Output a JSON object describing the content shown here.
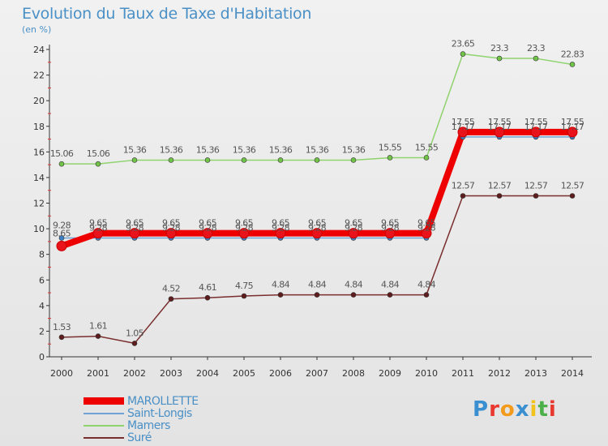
{
  "header": {
    "title": "Evolution du Taux de Taxe d'Habitation",
    "unit": "(en %)"
  },
  "brand": {
    "text": "Proxiti",
    "letter_colors": [
      "#3a8fd0",
      "#e8382f",
      "#f29b1d",
      "#3a8fd0",
      "#f2c21d",
      "#4bb04a",
      "#e8382f"
    ]
  },
  "chart_data": {
    "type": "line",
    "x": [
      "2000",
      "2001",
      "2002",
      "2003",
      "2004",
      "2005",
      "2006",
      "2007",
      "2008",
      "2009",
      "2010",
      "2011",
      "2012",
      "2013",
      "2014"
    ],
    "ylim": [
      0,
      24
    ],
    "yticks": [
      0,
      2,
      4,
      6,
      8,
      10,
      12,
      14,
      16,
      18,
      20,
      22,
      24
    ],
    "grid": false,
    "legend_position": "bottom-left",
    "series": [
      {
        "name": "MAROLLETTE",
        "color": "#ee0000",
        "marker_color": "#e8131b",
        "values": [
          8.65,
          9.65,
          9.65,
          9.65,
          9.65,
          9.65,
          9.65,
          9.65,
          9.65,
          9.65,
          9.65,
          17.55,
          17.55,
          17.55,
          17.55
        ],
        "labels": [
          "8.65",
          "9.65",
          "9.65",
          "9.65",
          "9.65",
          "9.65",
          "9.65",
          "9.65",
          "9.65",
          "9.65",
          "9.65",
          "17.55",
          "17.55",
          "17.55",
          "17.55"
        ]
      },
      {
        "name": "Saint-Longis",
        "color": "#6fa3d6",
        "marker_color": "#3c7fc4",
        "values": [
          9.28,
          9.28,
          9.28,
          9.28,
          9.28,
          9.28,
          9.28,
          9.28,
          9.28,
          9.28,
          9.28,
          17.17,
          17.17,
          17.17,
          17.17
        ],
        "labels": [
          "9.28",
          "9.28",
          "9.28",
          "9.28",
          "9.28",
          "9.28",
          "9.28",
          "9.28",
          "9.28",
          "9.28",
          "9.28",
          "17.17",
          "17.17",
          "17.17",
          "17.17"
        ]
      },
      {
        "name": "Mamers",
        "color": "#8fd36e",
        "marker_color": "#72c448",
        "values": [
          15.06,
          15.06,
          15.36,
          15.36,
          15.36,
          15.36,
          15.36,
          15.36,
          15.36,
          15.55,
          15.55,
          23.65,
          23.3,
          23.3,
          22.83
        ],
        "labels": [
          "15.06",
          "15.06",
          "15.36",
          "15.36",
          "15.36",
          "15.36",
          "15.36",
          "15.36",
          "15.36",
          "15.55",
          "15.55",
          "23.65",
          "23.3",
          "23.3",
          "22.83"
        ]
      },
      {
        "name": "Suré",
        "color": "#7a2e2e",
        "marker_color": "#5e1c1c",
        "values": [
          1.53,
          1.61,
          1.05,
          4.52,
          4.61,
          4.75,
          4.84,
          4.84,
          4.84,
          4.84,
          4.84,
          12.57,
          12.57,
          12.57,
          12.57
        ],
        "labels": [
          "1.53",
          "1.61",
          "1.05",
          "4.52",
          "4.61",
          "4.75",
          "4.84",
          "4.84",
          "4.84",
          "4.84",
          "4.84",
          "12.57",
          "12.57",
          "12.57",
          "12.57"
        ]
      }
    ]
  }
}
